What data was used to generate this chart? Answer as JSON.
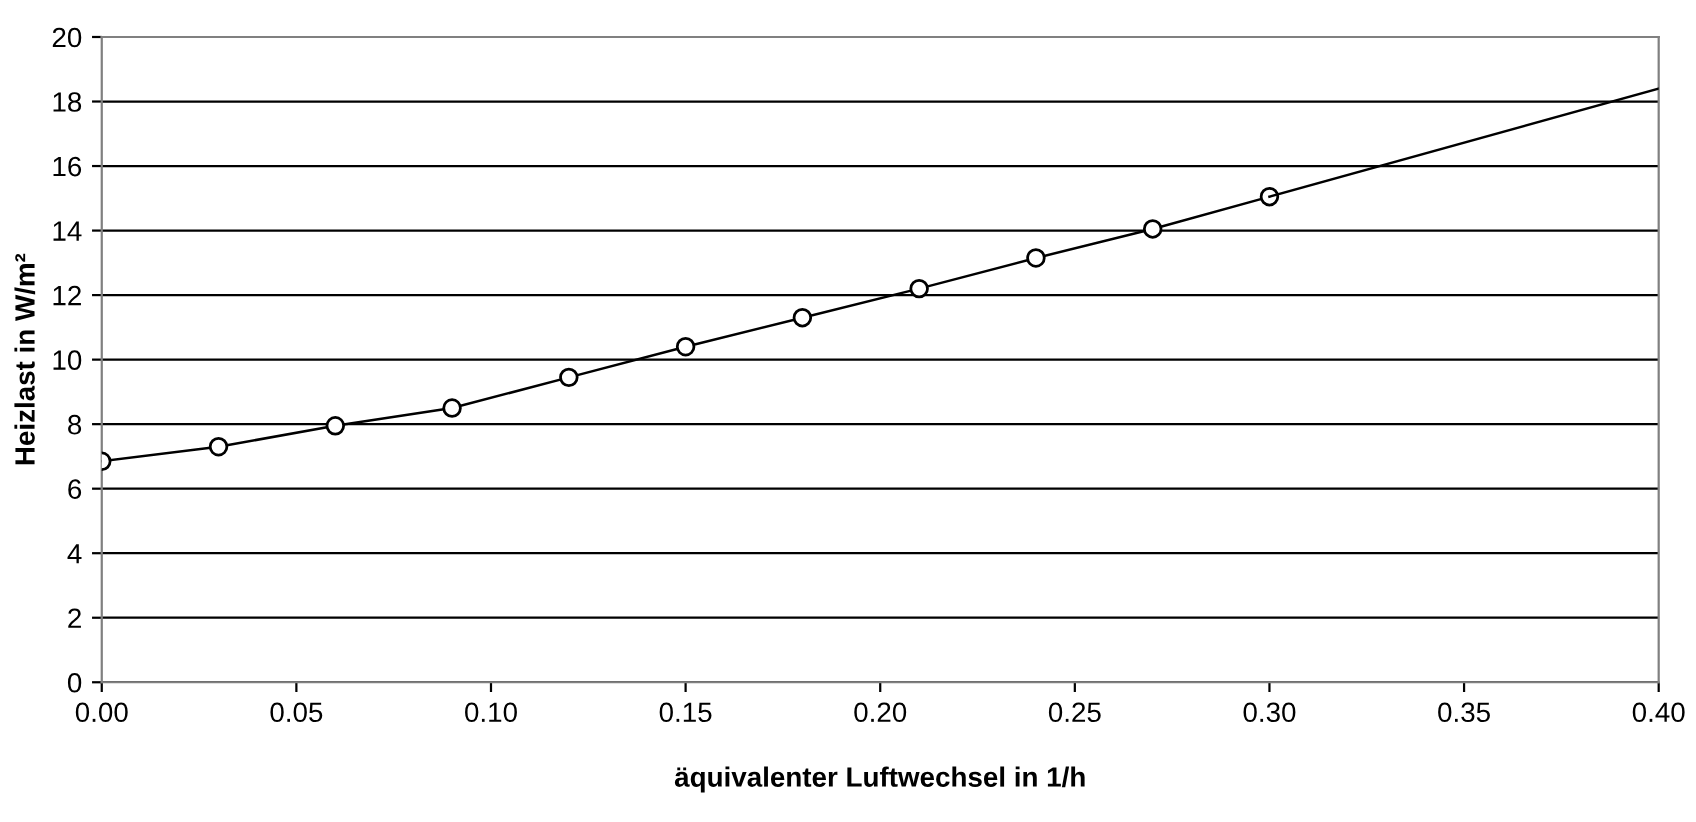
{
  "chart_data": {
    "type": "line",
    "xlabel": "äquivalenter Luftwechsel in 1/h",
    "ylabel": "Heizlast in W/m²",
    "xlim": [
      0,
      0.4
    ],
    "xticks": [
      {
        "value": 0,
        "label": "0.00"
      },
      {
        "value": 0.05,
        "label": "0.05"
      },
      {
        "value": 0.1,
        "label": "0.10"
      },
      {
        "value": 0.15,
        "label": "0.15"
      },
      {
        "value": 0.2,
        "label": "0.20"
      },
      {
        "value": 0.25,
        "label": "0.25"
      },
      {
        "value": 0.3,
        "label": "0.30"
      },
      {
        "value": 0.35,
        "label": "0.35"
      },
      {
        "value": 0.4,
        "label": "0.40"
      }
    ],
    "ylim": [
      0,
      20
    ],
    "yticks": [
      0,
      2,
      4,
      6,
      8,
      10,
      12,
      14,
      16,
      18,
      20
    ],
    "grid": "y",
    "legend": false,
    "series": [
      {
        "color": "#000000",
        "marker": "circle",
        "x": [
          0,
          0.03,
          0.06,
          0.09,
          0.12,
          0.15,
          0.18,
          0.21,
          0.24,
          0.27,
          0.3
        ],
        "values": [
          6.85,
          7.3,
          7.95,
          8.5,
          9.45,
          10.4,
          11.3,
          12.2,
          13.15,
          14.05,
          15.05
        ]
      },
      {
        "color": "#000000",
        "marker": "none",
        "x": [
          0.3,
          0.4
        ],
        "values": [
          15.05,
          18.4
        ]
      }
    ]
  }
}
